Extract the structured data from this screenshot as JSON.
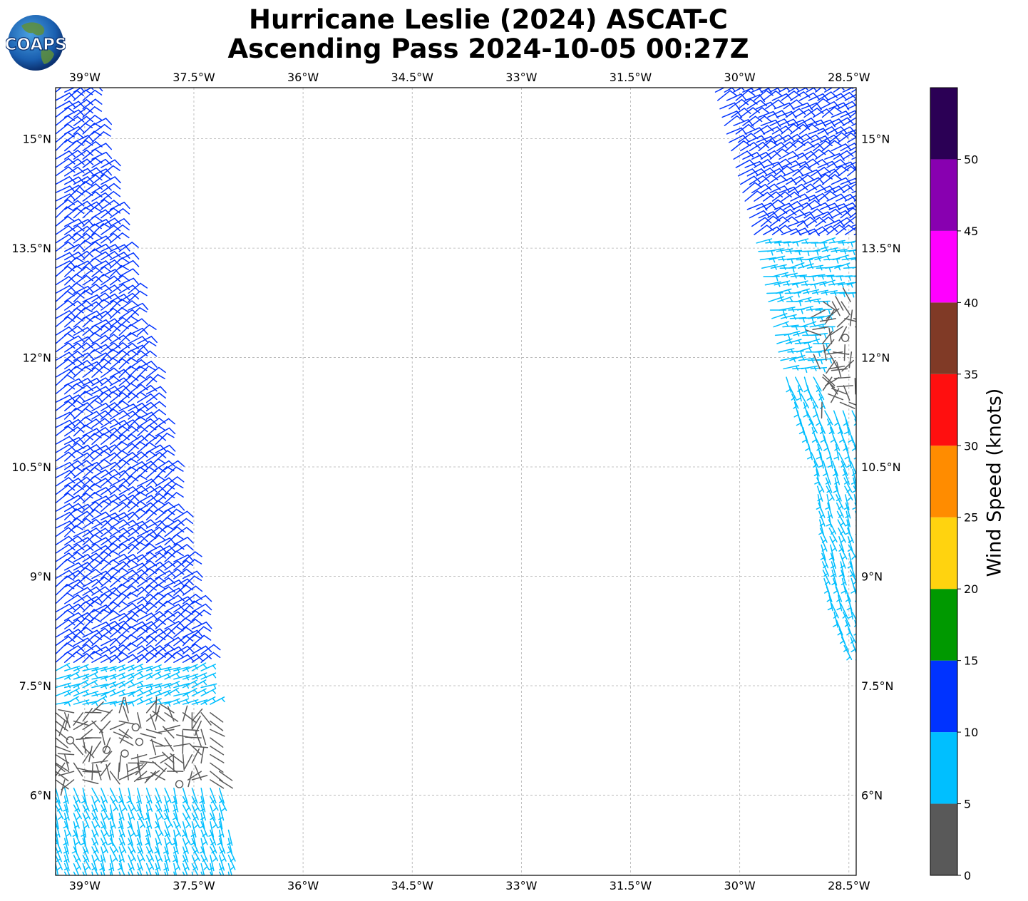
{
  "title_line1": "Hurricane Leslie (2024) ASCAT-C",
  "title_line2": "Ascending Pass 2024-10-05 00:27Z",
  "logo_text": "COAPS",
  "map": {
    "lon_range": [
      -39.4,
      -28.4
    ],
    "lat_range": [
      4.9,
      15.7
    ],
    "lon_ticks": [
      {
        "value": -39.0,
        "label": "39°W"
      },
      {
        "value": -37.5,
        "label": "37.5°W"
      },
      {
        "value": -36.0,
        "label": "36°W"
      },
      {
        "value": -34.5,
        "label": "34.5°W"
      },
      {
        "value": -33.0,
        "label": "33°W"
      },
      {
        "value": -31.5,
        "label": "31.5°W"
      },
      {
        "value": -30.0,
        "label": "30°W"
      },
      {
        "value": -28.5,
        "label": "28.5°W"
      }
    ],
    "lat_ticks": [
      {
        "value": 6.0,
        "label": "6°N"
      },
      {
        "value": 7.5,
        "label": "7.5°N"
      },
      {
        "value": 9.0,
        "label": "9°N"
      },
      {
        "value": 10.5,
        "label": "10.5°N"
      },
      {
        "value": 12.0,
        "label": "12°N"
      },
      {
        "value": 13.5,
        "label": "13.5°N"
      },
      {
        "value": 15.0,
        "label": "15°N"
      }
    ],
    "gridlines": true,
    "swaths": [
      {
        "name": "west",
        "edges": [
          {
            "lat": 15.7,
            "west": -39.45,
            "east": -39.0
          },
          {
            "lat": 12.0,
            "west": -39.45,
            "east": -38.2
          },
          {
            "lat": 9.0,
            "west": -39.45,
            "east": -37.6
          },
          {
            "lat": 7.5,
            "west": -39.45,
            "east": -37.3
          },
          {
            "lat": 6.0,
            "west": -39.45,
            "east": -37.1
          },
          {
            "lat": 4.9,
            "west": -39.45,
            "east": -36.9
          }
        ],
        "regimes": [
          {
            "lat_min": 7.8,
            "lat_max": 15.7,
            "speed": 12,
            "dir": 55
          },
          {
            "lat_min": 7.2,
            "lat_max": 7.8,
            "speed": 7,
            "dir": 70
          },
          {
            "lat_min": 6.1,
            "lat_max": 7.2,
            "speed": 3,
            "dir": 120
          },
          {
            "lat_min": 4.9,
            "lat_max": 6.1,
            "speed": 7,
            "dir": 160
          }
        ]
      },
      {
        "name": "east",
        "edges": [
          {
            "lat": 15.7,
            "west": -30.4,
            "east": -28.4
          },
          {
            "lat": 13.5,
            "west": -29.8,
            "east": -28.4
          },
          {
            "lat": 12.0,
            "west": -29.5,
            "east": -28.4
          },
          {
            "lat": 10.5,
            "west": -29.0,
            "east": -28.4
          },
          {
            "lat": 9.0,
            "west": -28.9,
            "east": -28.4
          },
          {
            "lat": 8.0,
            "west": -28.6,
            "east": -28.4
          }
        ],
        "regimes": [
          {
            "lat_min": 13.6,
            "lat_max": 15.7,
            "speed": 12,
            "dir": 60
          },
          {
            "lat_min": 11.8,
            "lat_max": 13.6,
            "speed": 7,
            "dir": 80
          },
          {
            "lat_min": 8.0,
            "lat_max": 11.8,
            "speed": 7,
            "dir": 160
          }
        ]
      }
    ],
    "calm_points": [
      {
        "lon": -39.2,
        "lat": 6.75
      },
      {
        "lon": -38.7,
        "lat": 6.62
      },
      {
        "lon": -38.45,
        "lat": 6.57
      },
      {
        "lon": -38.25,
        "lat": 6.73
      },
      {
        "lon": -38.3,
        "lat": 6.93
      },
      {
        "lon": -37.7,
        "lat": 6.15
      },
      {
        "lon": -28.55,
        "lat": 12.27
      }
    ],
    "calm_regions": [
      {
        "lon_min": -39.4,
        "lon_max": -37.4,
        "lat_min": 6.1,
        "lat_max": 7.2
      },
      {
        "lon_min": -28.9,
        "lon_max": -28.4,
        "lat_min": 11.3,
        "lat_max": 12.8
      }
    ]
  },
  "colorbar": {
    "label": "Wind Speed (knots)",
    "bins": [
      {
        "min": 0,
        "max": 5,
        "color": "#595959"
      },
      {
        "min": 5,
        "max": 10,
        "color": "#00bfff"
      },
      {
        "min": 10,
        "max": 15,
        "color": "#0033ff"
      },
      {
        "min": 15,
        "max": 20,
        "color": "#009900"
      },
      {
        "min": 20,
        "max": 25,
        "color": "#ffd30f"
      },
      {
        "min": 25,
        "max": 30,
        "color": "#ff8c00"
      },
      {
        "min": 30,
        "max": 35,
        "color": "#ff0f0f"
      },
      {
        "min": 35,
        "max": 40,
        "color": "#803a26"
      },
      {
        "min": 40,
        "max": 45,
        "color": "#ff00ff"
      },
      {
        "min": 45,
        "max": 50,
        "color": "#8800b0"
      },
      {
        "min": 50,
        "max": 55,
        "color": "#2b0055"
      }
    ],
    "tick_labels": [
      "0",
      "5",
      "10",
      "15",
      "20",
      "25",
      "30",
      "35",
      "40",
      "45",
      "50"
    ]
  }
}
